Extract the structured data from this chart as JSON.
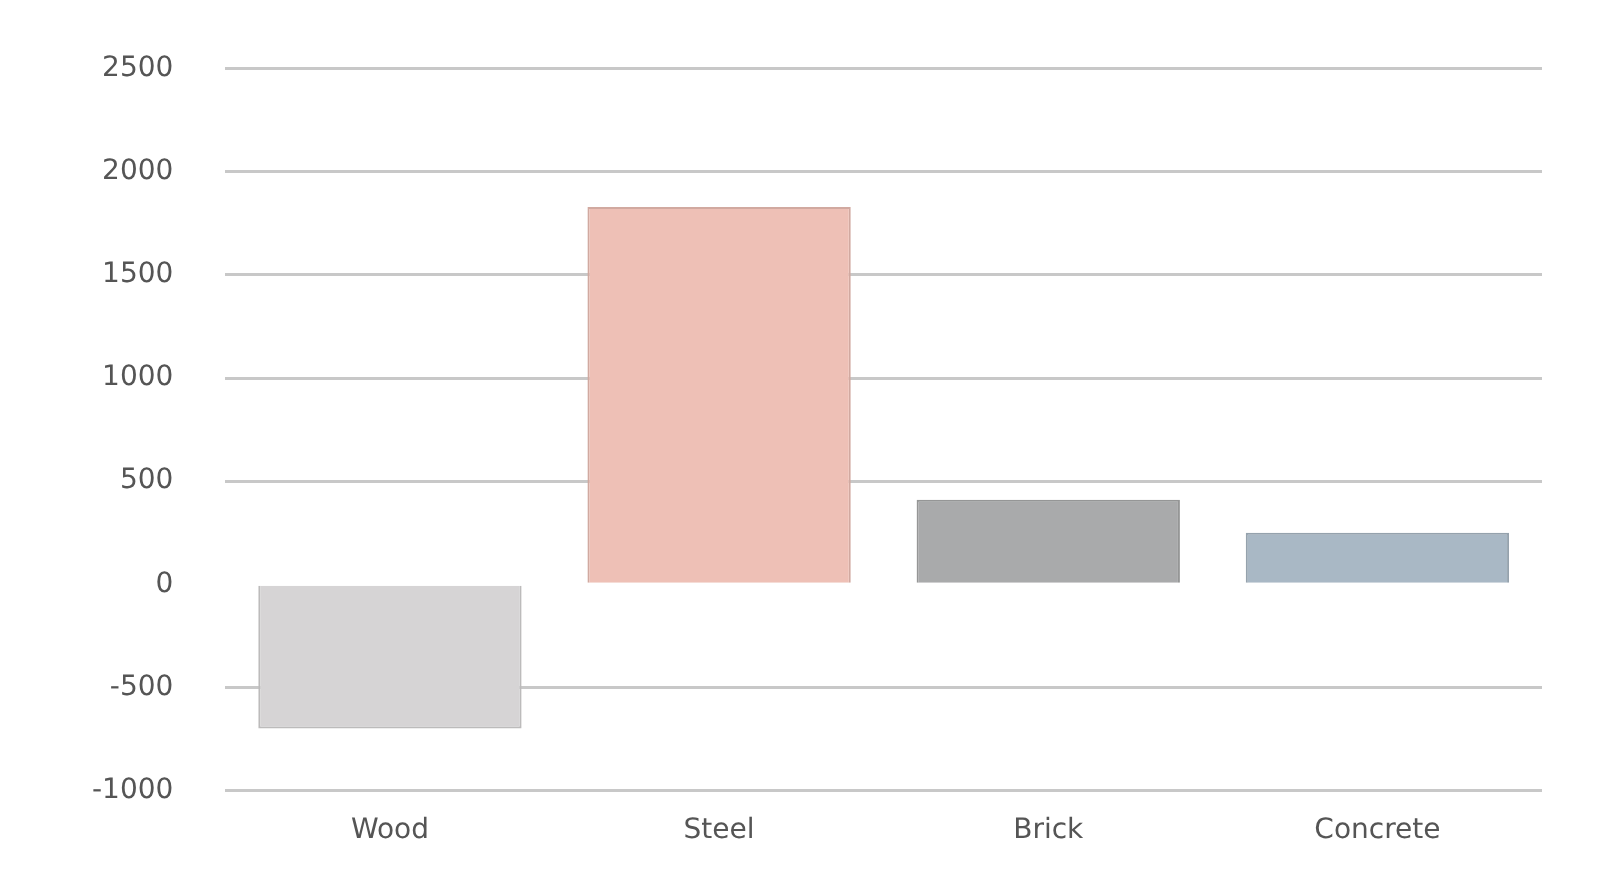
{
  "chart_data": {
    "type": "bar",
    "categories": [
      "Wood",
      "Steel",
      "Brick",
      "Concrete"
    ],
    "values": [
      -700,
      1830,
      410,
      250
    ],
    "colors": [
      "#d6d4d5",
      "#eec0b6",
      "#a9aaab",
      "#a9b8c5"
    ],
    "ylim": [
      -1000,
      2500
    ],
    "yticks": [
      -1000,
      -500,
      0,
      500,
      1000,
      1500,
      2000,
      2500
    ],
    "grid": "y",
    "legend": false
  }
}
